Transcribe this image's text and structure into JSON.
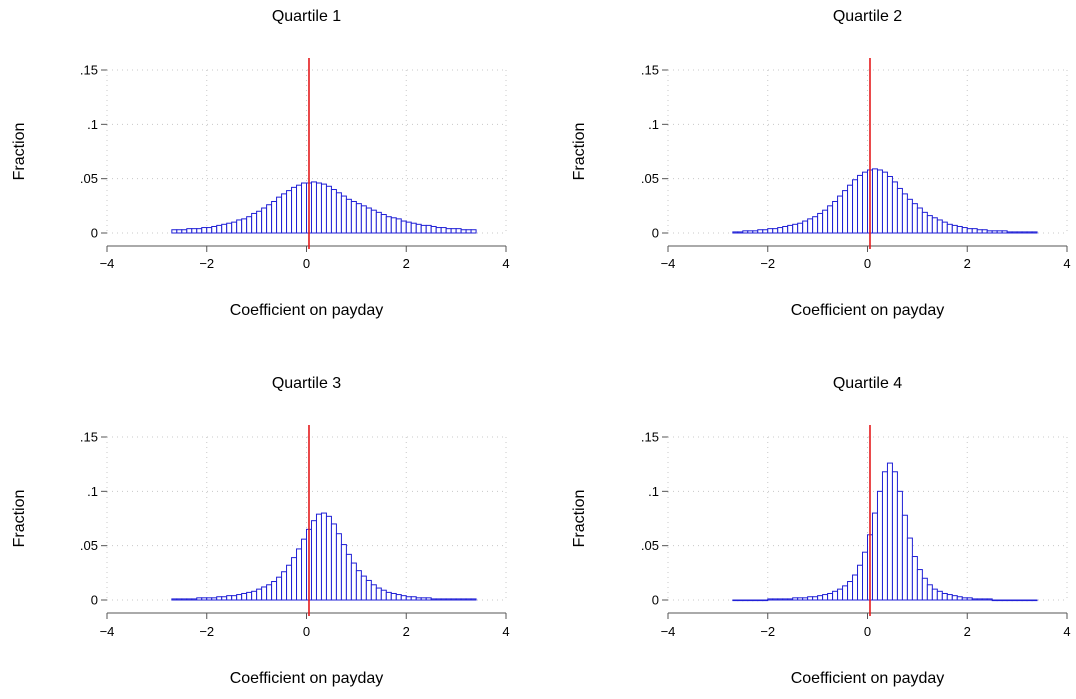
{
  "chart_data": [
    {
      "type": "bar",
      "title": "Quartile 1",
      "xlabel": "Coefficient on payday",
      "ylabel": "Fraction",
      "xlim": [
        -4,
        4
      ],
      "ylim": [
        0,
        0.15
      ],
      "xticks": [
        -4,
        -2,
        0,
        2,
        4
      ],
      "xtick_labels": [
        "−4",
        "−2",
        "0",
        "2",
        "4"
      ],
      "yticks": [
        0,
        0.05,
        0.1,
        0.15
      ],
      "ytick_labels": [
        "0",
        ".05",
        ".1",
        ".15"
      ],
      "grid": true,
      "reference_line_x": 0.05,
      "bin_start": -2.7,
      "bin_width": 0.1,
      "values": [
        0.003,
        0.003,
        0.003,
        0.004,
        0.004,
        0.004,
        0.005,
        0.005,
        0.006,
        0.007,
        0.008,
        0.009,
        0.01,
        0.012,
        0.013,
        0.015,
        0.018,
        0.02,
        0.023,
        0.026,
        0.029,
        0.033,
        0.036,
        0.039,
        0.042,
        0.044,
        0.046,
        0.046,
        0.047,
        0.046,
        0.045,
        0.043,
        0.04,
        0.037,
        0.034,
        0.031,
        0.029,
        0.027,
        0.025,
        0.023,
        0.021,
        0.019,
        0.017,
        0.015,
        0.014,
        0.013,
        0.011,
        0.01,
        0.009,
        0.008,
        0.007,
        0.007,
        0.006,
        0.005,
        0.005,
        0.004,
        0.004,
        0.004,
        0.003,
        0.003,
        0.003
      ]
    },
    {
      "type": "bar",
      "title": "Quartile 2",
      "xlabel": "Coefficient on payday",
      "ylabel": "Fraction",
      "xlim": [
        -4,
        4
      ],
      "ylim": [
        0,
        0.15
      ],
      "xticks": [
        -4,
        -2,
        0,
        2,
        4
      ],
      "xtick_labels": [
        "−4",
        "−2",
        "0",
        "2",
        "4"
      ],
      "yticks": [
        0,
        0.05,
        0.1,
        0.15
      ],
      "ytick_labels": [
        "0",
        ".05",
        ".1",
        ".15"
      ],
      "grid": true,
      "reference_line_x": 0.05,
      "bin_start": -2.7,
      "bin_width": 0.1,
      "values": [
        0.001,
        0.001,
        0.002,
        0.002,
        0.002,
        0.003,
        0.003,
        0.004,
        0.004,
        0.005,
        0.006,
        0.007,
        0.008,
        0.009,
        0.011,
        0.013,
        0.015,
        0.018,
        0.021,
        0.025,
        0.029,
        0.034,
        0.039,
        0.044,
        0.049,
        0.053,
        0.056,
        0.058,
        0.059,
        0.058,
        0.056,
        0.052,
        0.047,
        0.041,
        0.036,
        0.031,
        0.027,
        0.023,
        0.019,
        0.016,
        0.014,
        0.012,
        0.01,
        0.008,
        0.007,
        0.006,
        0.005,
        0.004,
        0.004,
        0.003,
        0.003,
        0.002,
        0.002,
        0.002,
        0.002,
        0.001,
        0.001,
        0.001,
        0.001,
        0.001,
        0.001
      ]
    },
    {
      "type": "bar",
      "title": "Quartile 3",
      "xlabel": "Coefficient on payday",
      "ylabel": "Fraction",
      "xlim": [
        -4,
        4
      ],
      "ylim": [
        0,
        0.15
      ],
      "xticks": [
        -4,
        -2,
        0,
        2,
        4
      ],
      "xtick_labels": [
        "−4",
        "−2",
        "0",
        "2",
        "4"
      ],
      "yticks": [
        0,
        0.05,
        0.1,
        0.15
      ],
      "ytick_labels": [
        "0",
        ".05",
        ".1",
        ".15"
      ],
      "grid": true,
      "reference_line_x": 0.05,
      "bin_start": -2.7,
      "bin_width": 0.1,
      "values": [
        0.001,
        0.001,
        0.001,
        0.001,
        0.001,
        0.002,
        0.002,
        0.002,
        0.002,
        0.003,
        0.003,
        0.004,
        0.004,
        0.005,
        0.006,
        0.007,
        0.008,
        0.01,
        0.012,
        0.014,
        0.017,
        0.021,
        0.026,
        0.032,
        0.039,
        0.047,
        0.056,
        0.065,
        0.073,
        0.079,
        0.08,
        0.077,
        0.07,
        0.061,
        0.051,
        0.042,
        0.034,
        0.027,
        0.022,
        0.018,
        0.014,
        0.011,
        0.009,
        0.007,
        0.006,
        0.005,
        0.004,
        0.003,
        0.003,
        0.002,
        0.002,
        0.002,
        0.001,
        0.001,
        0.001,
        0.001,
        0.001,
        0.001,
        0.001,
        0.001,
        0.001
      ]
    },
    {
      "type": "bar",
      "title": "Quartile 4",
      "xlabel": "Coefficient on payday",
      "ylabel": "Fraction",
      "xlim": [
        -4,
        4
      ],
      "ylim": [
        0,
        0.15
      ],
      "xticks": [
        -4,
        -2,
        0,
        2,
        4
      ],
      "xtick_labels": [
        "−4",
        "−2",
        "0",
        "2",
        "4"
      ],
      "yticks": [
        0,
        0.05,
        0.1,
        0.15
      ],
      "ytick_labels": [
        "0",
        ".05",
        ".1",
        ".15"
      ],
      "grid": true,
      "reference_line_x": 0.05,
      "bin_start": -2.7,
      "bin_width": 0.1,
      "values": [
        0,
        0,
        0,
        0,
        0,
        0,
        0,
        0.001,
        0.001,
        0.001,
        0.001,
        0.001,
        0.002,
        0.002,
        0.002,
        0.003,
        0.003,
        0.004,
        0.005,
        0.006,
        0.008,
        0.01,
        0.013,
        0.017,
        0.023,
        0.032,
        0.044,
        0.06,
        0.08,
        0.1,
        0.118,
        0.126,
        0.118,
        0.1,
        0.078,
        0.057,
        0.04,
        0.028,
        0.02,
        0.014,
        0.01,
        0.008,
        0.006,
        0.005,
        0.004,
        0.003,
        0.002,
        0.002,
        0.001,
        0.001,
        0.001,
        0.001,
        0,
        0,
        0,
        0,
        0,
        0,
        0,
        0,
        0
      ]
    }
  ],
  "colors": {
    "bar_stroke": "#1f1fd6",
    "reference_line": "#e41a1c"
  }
}
